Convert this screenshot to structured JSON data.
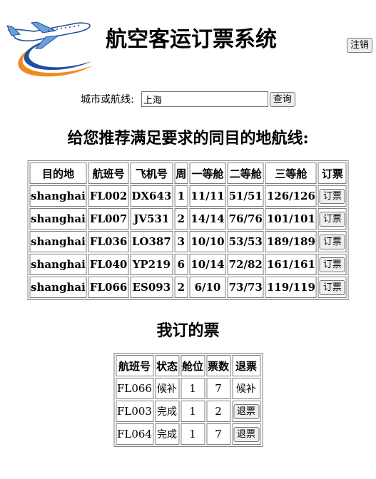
{
  "header": {
    "title": "航空客运订票系统",
    "logout_label": "注销",
    "logo_icon": "airplane-logo-icon"
  },
  "search": {
    "label": "城市或航线:",
    "value": "上海",
    "button_label": "查询"
  },
  "recommend": {
    "title": "给您推荐满足要求的同目的地航线:",
    "columns": [
      "目的地",
      "航班号",
      "飞机号",
      "周",
      "一等舱",
      "二等舱",
      "三等舱",
      "订票"
    ],
    "book_label": "订票",
    "rows": [
      [
        "shanghai",
        "FL002",
        "DX643",
        "1",
        "11/11",
        "51/51",
        "126/126"
      ],
      [
        "shanghai",
        "FL007",
        "JV531",
        "2",
        "14/14",
        "76/76",
        "101/101"
      ],
      [
        "shanghai",
        "FL036",
        "LO387",
        "3",
        "10/10",
        "53/53",
        "189/189"
      ],
      [
        "shanghai",
        "FL040",
        "YP219",
        "6",
        "10/14",
        "72/82",
        "161/161"
      ],
      [
        "shanghai",
        "FL066",
        "ES093",
        "2",
        "6/10",
        "73/73",
        "119/119"
      ]
    ]
  },
  "my_tickets": {
    "title": "我订的票",
    "columns": [
      "航班号",
      "状态",
      "舱位",
      "票数",
      "退票"
    ],
    "refund_label": "退票",
    "rows": [
      {
        "flight": "FL066",
        "status": "候补",
        "cabin": "1",
        "count": "7",
        "action": "候补",
        "action_is_button": false
      },
      {
        "flight": "FL003",
        "status": "完成",
        "cabin": "1",
        "count": "2",
        "action": "退票",
        "action_is_button": true
      },
      {
        "flight": "FL064",
        "status": "完成",
        "cabin": "1",
        "count": "7",
        "action": "退票",
        "action_is_button": true
      }
    ]
  },
  "colors": {
    "logo_blue": "#1f4fa0",
    "logo_orange": "#f08a1c",
    "logo_sky": "#6aa0d8"
  }
}
